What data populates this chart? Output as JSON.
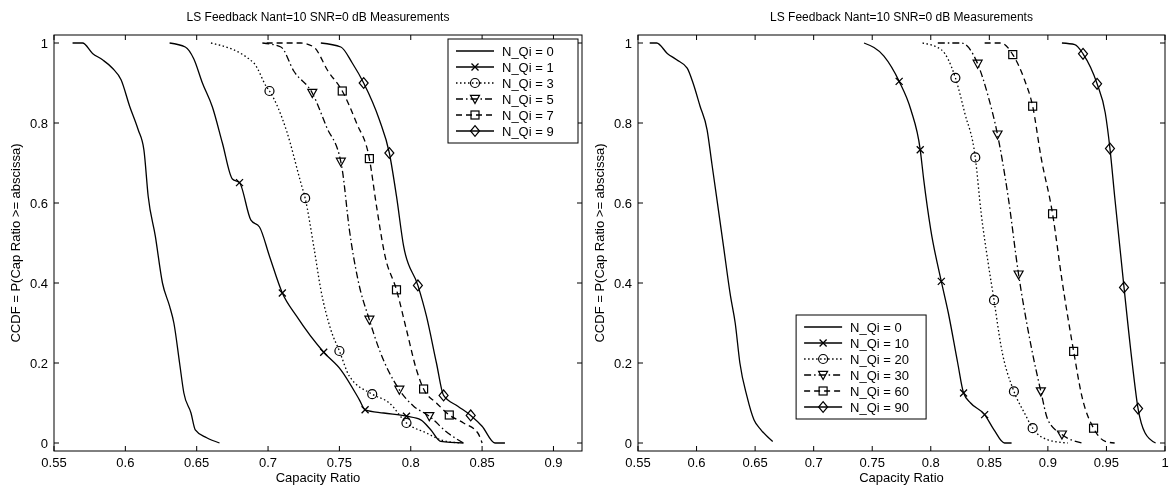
{
  "chart_data": [
    {
      "type": "line",
      "title": "LS Feedback Nant=10 SNR=0 dB Measurements",
      "xlabel": "Capacity Ratio",
      "ylabel": "CCDF = P(Cap Ratio >= abscissa)",
      "xlim": [
        0.55,
        0.92
      ],
      "ylim": [
        -0.02,
        1.02
      ],
      "xticks": [
        0.55,
        0.6,
        0.65,
        0.7,
        0.75,
        0.8,
        0.85,
        0.9
      ],
      "yticks": [
        0,
        0.2,
        0.4,
        0.6,
        0.8,
        1
      ],
      "legend": "top right",
      "series": [
        {
          "name": "N_Qi = 0",
          "color": "#000000",
          "line_style": "solid",
          "x": [
            0.563,
            0.57,
            0.577,
            0.584,
            0.591,
            0.597,
            0.603,
            0.609,
            0.613,
            0.616,
            0.621,
            0.626,
            0.631,
            0.634,
            0.638,
            0.641,
            0.646,
            0.649,
            0.657,
            0.666
          ],
          "values": [
            1.0,
            1.0,
            0.974,
            0.958,
            0.937,
            0.908,
            0.842,
            0.783,
            0.733,
            0.617,
            0.517,
            0.4,
            0.342,
            0.3,
            0.2,
            0.125,
            0.075,
            0.033,
            0.013,
            0.0
          ]
        },
        {
          "name": "N_Qi = 1",
          "color": "#000000",
          "line_style": "solid",
          "x": [
            0.631,
            0.642,
            0.648,
            0.654,
            0.661,
            0.668,
            0.675,
            0.68,
            0.688,
            0.694,
            0.701,
            0.71,
            0.72,
            0.739,
            0.751,
            0.764,
            0.768,
            0.781,
            0.797,
            0.807,
            0.814,
            0.821,
            0.837
          ],
          "values": [
            1.0,
            0.99,
            0.96,
            0.9,
            0.84,
            0.75,
            0.66,
            0.651,
            0.557,
            0.54,
            0.467,
            0.375,
            0.317,
            0.227,
            0.183,
            0.108,
            0.083,
            0.075,
            0.067,
            0.058,
            0.033,
            0.004,
            0.0
          ]
        },
        {
          "type": "scatter",
          "color": "#000000",
          "marker": "cross",
          "x": [
            0.68,
            0.71,
            0.739,
            0.768,
            0.797
          ],
          "values": [
            0.651,
            0.375,
            0.227,
            0.083,
            0.067
          ]
        },
        {
          "name": "N_Qi = 3",
          "color": "#000000",
          "line_style": "dotted",
          "x": [
            0.66,
            0.69,
            0.699,
            0.701,
            0.713,
            0.723,
            0.726,
            0.732,
            0.737,
            0.744,
            0.75,
            0.757,
            0.773,
            0.785,
            0.797,
            0.811,
            0.821,
            0.835
          ],
          "values": [
            1.0,
            0.95,
            0.89,
            0.88,
            0.78,
            0.65,
            0.612,
            0.492,
            0.383,
            0.283,
            0.23,
            0.167,
            0.122,
            0.1,
            0.05,
            0.025,
            0.008,
            0.0
          ]
        },
        {
          "type": "scatter",
          "color": "#000000",
          "marker": "circle",
          "x": [
            0.701,
            0.726,
            0.75,
            0.773,
            0.797
          ],
          "values": [
            0.88,
            0.612,
            0.23,
            0.122,
            0.05
          ]
        },
        {
          "name": "N_Qi = 5",
          "color": "#000000",
          "line_style": "dashdot",
          "x": [
            0.696,
            0.709,
            0.718,
            0.731,
            0.741,
            0.751,
            0.752,
            0.757,
            0.763,
            0.771,
            0.778,
            0.792,
            0.802,
            0.813,
            0.826,
            0.837
          ],
          "values": [
            1.0,
            0.99,
            0.93,
            0.875,
            0.79,
            0.703,
            0.683,
            0.533,
            0.408,
            0.308,
            0.233,
            0.133,
            0.092,
            0.067,
            0.025,
            0.0
          ]
        },
        {
          "type": "scatter",
          "color": "#000000",
          "marker": "triangle",
          "x": [
            0.731,
            0.751,
            0.771,
            0.792,
            0.813
          ],
          "values": [
            0.875,
            0.703,
            0.308,
            0.133,
            0.067
          ]
        },
        {
          "name": "N_Qi = 7",
          "color": "#000000",
          "line_style": "dashed",
          "x": [
            0.699,
            0.723,
            0.732,
            0.742,
            0.752,
            0.762,
            0.771,
            0.776,
            0.782,
            0.79,
            0.797,
            0.804,
            0.809,
            0.818,
            0.827,
            0.837,
            0.847,
            0.85
          ],
          "values": [
            1.0,
            1.0,
            0.99,
            0.93,
            0.88,
            0.8,
            0.711,
            0.592,
            0.467,
            0.383,
            0.283,
            0.183,
            0.135,
            0.1,
            0.07,
            0.05,
            0.025,
            0.0
          ]
        },
        {
          "type": "scatter",
          "color": "#000000",
          "marker": "square",
          "x": [
            0.752,
            0.771,
            0.79,
            0.809,
            0.827
          ],
          "values": [
            0.88,
            0.711,
            0.383,
            0.135,
            0.07
          ]
        },
        {
          "name": "N_Qi = 9",
          "color": "#000000",
          "line_style": "solid",
          "x": [
            0.737,
            0.751,
            0.759,
            0.767,
            0.778,
            0.785,
            0.79,
            0.795,
            0.805,
            0.811,
            0.818,
            0.823,
            0.833,
            0.842,
            0.85,
            0.859,
            0.866
          ],
          "values": [
            1.0,
            0.99,
            0.95,
            0.9,
            0.808,
            0.725,
            0.617,
            0.492,
            0.394,
            0.317,
            0.2,
            0.119,
            0.092,
            0.069,
            0.042,
            0.0,
            0.0
          ]
        },
        {
          "type": "scatter",
          "color": "#000000",
          "marker": "diamond",
          "x": [
            0.767,
            0.785,
            0.805,
            0.823,
            0.842
          ],
          "values": [
            0.9,
            0.725,
            0.394,
            0.119,
            0.069
          ]
        }
      ]
    },
    {
      "type": "line",
      "title": "LS Feedback Nant=10 SNR=0 dB Measurements",
      "xlabel": "Capacity Ratio",
      "ylabel": "CCDF = P(Cap Ratio >= abscissa)",
      "xlim": [
        0.55,
        1
      ],
      "ylim": [
        -0.02,
        1.02
      ],
      "xticks": [
        0.55,
        0.6,
        0.65,
        0.7,
        0.75,
        0.8,
        0.85,
        0.9,
        0.95,
        1
      ],
      "yticks": [
        0,
        0.2,
        0.4,
        0.6,
        0.8,
        1
      ],
      "legend": "bottom",
      "series": [
        {
          "name": "N_Qi = 0",
          "color": "#000000",
          "line_style": "solid",
          "x": [
            0.56,
            0.566,
            0.575,
            0.583,
            0.592,
            0.597,
            0.603,
            0.609,
            0.613,
            0.617,
            0.623,
            0.629,
            0.633,
            0.637,
            0.643,
            0.649,
            0.655,
            0.665
          ],
          "values": [
            1.0,
            1.0,
            0.974,
            0.958,
            0.937,
            0.9,
            0.842,
            0.783,
            0.7,
            0.617,
            0.492,
            0.367,
            0.3,
            0.2,
            0.117,
            0.058,
            0.033,
            0.004
          ]
        },
        {
          "name": "N_Qi = 10",
          "color": "#000000",
          "line_style": "solid",
          "x": [
            0.743,
            0.76,
            0.773,
            0.783,
            0.791,
            0.794,
            0.8,
            0.809,
            0.815,
            0.823,
            0.828,
            0.834,
            0.846,
            0.854,
            0.863,
            0.869
          ],
          "values": [
            1.0,
            0.967,
            0.904,
            0.833,
            0.733,
            0.658,
            0.533,
            0.404,
            0.325,
            0.2,
            0.125,
            0.1,
            0.071,
            0.033,
            0.0,
            0.0
          ]
        },
        {
          "type": "scatter",
          "color": "#000000",
          "marker": "cross",
          "x": [
            0.773,
            0.791,
            0.809,
            0.828,
            0.846
          ],
          "values": [
            0.904,
            0.733,
            0.404,
            0.125,
            0.071
          ]
        },
        {
          "name": "N_Qi = 20",
          "color": "#000000",
          "line_style": "dotted",
          "x": [
            0.793,
            0.809,
            0.821,
            0.829,
            0.838,
            0.843,
            0.849,
            0.854,
            0.86,
            0.871,
            0.88,
            0.887,
            0.9,
            0.917
          ],
          "values": [
            1.0,
            0.983,
            0.913,
            0.825,
            0.714,
            0.575,
            0.45,
            0.357,
            0.242,
            0.129,
            0.075,
            0.037,
            0.008,
            0.0
          ]
        },
        {
          "type": "scatter",
          "color": "#000000",
          "marker": "circle",
          "x": [
            0.821,
            0.838,
            0.854,
            0.871,
            0.887
          ],
          "values": [
            0.913,
            0.714,
            0.357,
            0.129,
            0.037
          ]
        },
        {
          "name": "N_Qi = 30",
          "color": "#000000",
          "line_style": "dashdot",
          "x": [
            0.806,
            0.826,
            0.84,
            0.849,
            0.857,
            0.866,
            0.875,
            0.883,
            0.894,
            0.9,
            0.912,
            0.929
          ],
          "values": [
            1.0,
            1.0,
            0.948,
            0.867,
            0.771,
            0.617,
            0.421,
            0.283,
            0.129,
            0.058,
            0.021,
            0.0
          ]
        },
        {
          "type": "scatter",
          "color": "#000000",
          "marker": "triangle",
          "x": [
            0.84,
            0.857,
            0.875,
            0.894,
            0.912
          ],
          "values": [
            0.948,
            0.771,
            0.421,
            0.129,
            0.021
          ]
        },
        {
          "name": "N_Qi = 60",
          "color": "#000000",
          "line_style": "dashed",
          "x": [
            0.846,
            0.86,
            0.87,
            0.88,
            0.887,
            0.894,
            0.904,
            0.912,
            0.922,
            0.929,
            0.939,
            0.949,
            0.957
          ],
          "values": [
            1.0,
            1.0,
            0.971,
            0.908,
            0.842,
            0.717,
            0.573,
            0.408,
            0.229,
            0.117,
            0.037,
            0.004,
            0.0
          ]
        },
        {
          "type": "scatter",
          "color": "#000000",
          "marker": "square",
          "x": [
            0.87,
            0.887,
            0.904,
            0.922,
            0.939
          ],
          "values": [
            0.971,
            0.842,
            0.573,
            0.229,
            0.037
          ]
        },
        {
          "name": "N_Qi = 90",
          "color": "#000000",
          "line_style": "solid",
          "x": [
            0.912,
            0.923,
            0.93,
            0.942,
            0.949,
            0.953,
            0.957,
            0.965,
            0.972,
            0.977,
            0.983,
            0.992
          ],
          "values": [
            1.0,
            0.996,
            0.973,
            0.898,
            0.825,
            0.736,
            0.617,
            0.389,
            0.2,
            0.086,
            0.025,
            0.0
          ]
        },
        {
          "type": "scatter",
          "color": "#000000",
          "marker": "diamond",
          "x": [
            0.93,
            0.942,
            0.953,
            0.965,
            0.977
          ],
          "values": [
            0.973,
            0.898,
            0.736,
            0.389,
            0.086
          ]
        }
      ]
    }
  ]
}
